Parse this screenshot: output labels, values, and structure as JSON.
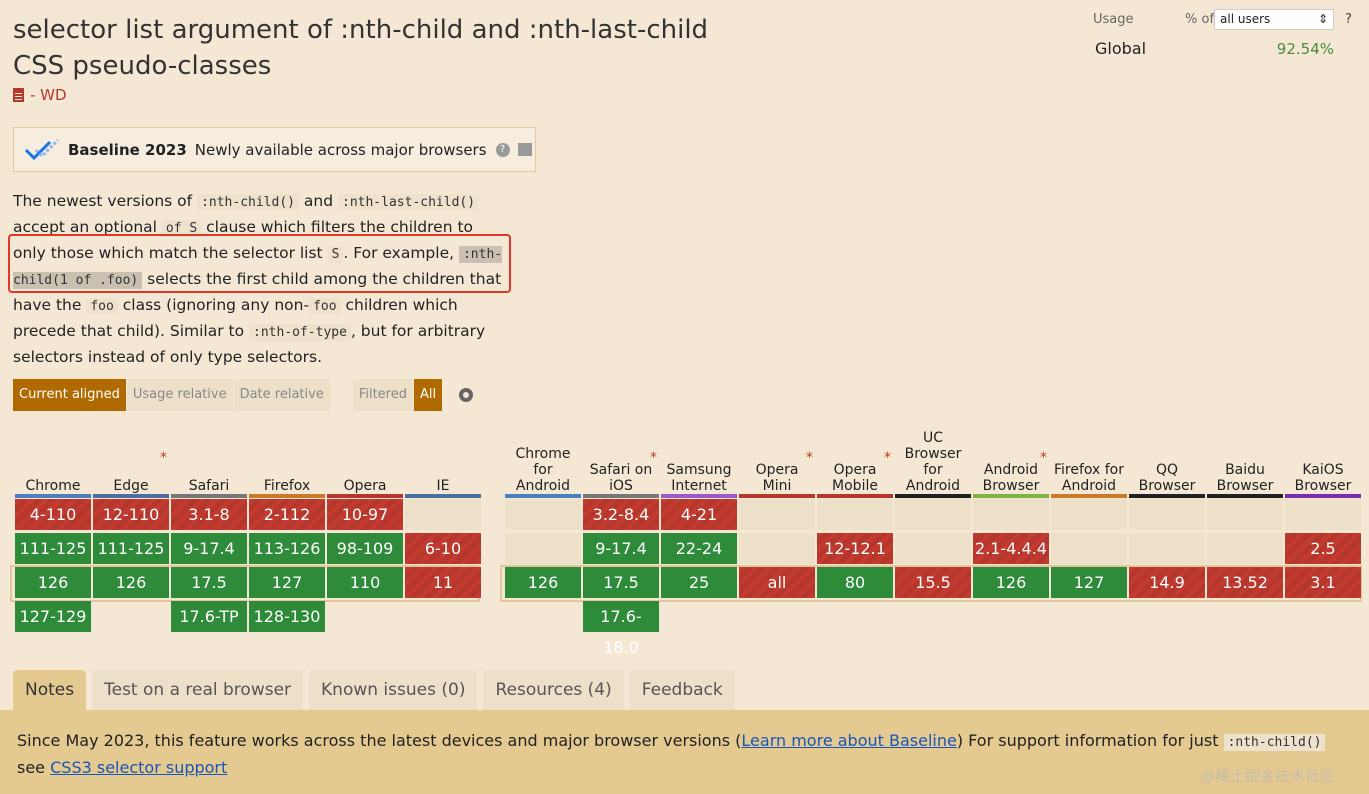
{
  "title": "selector list argument of :nth-child and :nth-last-child CSS pseudo-classes",
  "status": "- WD",
  "baseline": {
    "title": "Baseline 2023",
    "text": "Newly available across major browsers",
    "help": "?"
  },
  "description": {
    "p1": "The newest versions of ",
    "c1": ":nth-child()",
    "p2": " and ",
    "c2": ":nth-last-child()",
    "p3": " accept an optional ",
    "c3": "of S",
    "p4": " clause which filters the children to only those which match the selector list ",
    "c4": "S",
    "p5": ". For example, ",
    "c5": ":nth-child(1 of .foo)",
    "p6": " selects the first child among the children that have the ",
    "c6": "foo",
    "p7": " class (ignoring any non-",
    "c7": "foo",
    "p8": " children which precede that child). Similar to ",
    "c8": ":nth-of-type",
    "p9": ", but for arbitrary selectors instead of only type selectors."
  },
  "filters": {
    "current_aligned": "Current aligned",
    "usage_relative": "Usage relative",
    "date_relative": "Date relative",
    "filtered": "Filtered",
    "all": "All"
  },
  "usage": {
    "label": "Usage",
    "of": "% of",
    "select_value": "all users",
    "help": "?",
    "global_label": "Global",
    "global_value": "92.54%"
  },
  "browsers": [
    {
      "name": "Chrome",
      "color": "#4a7fc1",
      "cells": [
        [
          "4-110",
          "n"
        ],
        [
          "111-125",
          "y"
        ],
        [
          "126",
          "y"
        ],
        [
          "127-129",
          "y"
        ]
      ]
    },
    {
      "name": "Edge",
      "star": true,
      "color": "#4a6fa5",
      "cells": [
        [
          "12-110",
          "n"
        ],
        [
          "111-125",
          "y"
        ],
        [
          "126",
          "y"
        ],
        [
          "",
          ""
        ]
      ]
    },
    {
      "name": "Safari",
      "color": "#777777",
      "cells": [
        [
          "3.1-8",
          "n"
        ],
        [
          "9-17.4",
          "y"
        ],
        [
          "17.5",
          "y"
        ],
        [
          "17.6-TP",
          "y"
        ]
      ]
    },
    {
      "name": "Firefox",
      "color": "#c97a2b",
      "cells": [
        [
          "2-112",
          "n"
        ],
        [
          "113-126",
          "y"
        ],
        [
          "127",
          "y"
        ],
        [
          "128-130",
          "y"
        ]
      ]
    },
    {
      "name": "Opera",
      "color": "#b5362b",
      "cells": [
        [
          "10-97",
          "n"
        ],
        [
          "98-109",
          "y"
        ],
        [
          "110",
          "y"
        ],
        [
          "",
          ""
        ]
      ]
    },
    {
      "name": "IE",
      "color": "#4a6fa5",
      "cells": [
        [
          "",
          "e"
        ],
        [
          "6-10",
          "n"
        ],
        [
          "11",
          "n"
        ],
        [
          "",
          ""
        ]
      ]
    },
    {
      "name": "Chrome for Android",
      "color": "#4a7fc1",
      "cells": [
        [
          "",
          "e"
        ],
        [
          "",
          "e"
        ],
        [
          "126",
          "y"
        ],
        [
          "",
          ""
        ]
      ]
    },
    {
      "name": "Safari on iOS",
      "star": true,
      "color": "#777777",
      "cells": [
        [
          "3.2-8.4",
          "n"
        ],
        [
          "9-17.4",
          "y"
        ],
        [
          "17.5",
          "y"
        ],
        [
          "17.6-18.0",
          "y"
        ]
      ]
    },
    {
      "name": "Samsung Internet",
      "color": "#9b59c9",
      "cells": [
        [
          "4-21",
          "n"
        ],
        [
          "22-24",
          "y"
        ],
        [
          "25",
          "y"
        ],
        [
          "",
          ""
        ]
      ]
    },
    {
      "name": "Opera Mini",
      "star": true,
      "color": "#b5362b",
      "cells": [
        [
          "",
          "e"
        ],
        [
          "",
          "e"
        ],
        [
          "all",
          "n"
        ],
        [
          "",
          ""
        ]
      ]
    },
    {
      "name": "Opera Mobile",
      "star": true,
      "color": "#b5362b",
      "cells": [
        [
          "",
          "e"
        ],
        [
          "12-12.1",
          "n"
        ],
        [
          "80",
          "y"
        ],
        [
          "",
          ""
        ]
      ]
    },
    {
      "name": "UC Browser for Android",
      "color": "#222222",
      "cells": [
        [
          "",
          "e"
        ],
        [
          "",
          "e"
        ],
        [
          "15.5",
          "n"
        ],
        [
          "",
          ""
        ]
      ]
    },
    {
      "name": "Android Browser",
      "star": true,
      "color": "#7cb342",
      "cells": [
        [
          "",
          "e"
        ],
        [
          "2.1-4.4.4",
          "n"
        ],
        [
          "126",
          "y"
        ],
        [
          "",
          ""
        ]
      ]
    },
    {
      "name": "Firefox for Android",
      "color": "#c97a2b",
      "cells": [
        [
          "",
          "e"
        ],
        [
          "",
          "e"
        ],
        [
          "127",
          "y"
        ],
        [
          "",
          ""
        ]
      ]
    },
    {
      "name": "QQ Browser",
      "color": "#222222",
      "cells": [
        [
          "",
          "e"
        ],
        [
          "",
          "e"
        ],
        [
          "14.9",
          "n"
        ],
        [
          "",
          ""
        ]
      ]
    },
    {
      "name": "Baidu Browser",
      "color": "#222222",
      "cells": [
        [
          "",
          "e"
        ],
        [
          "",
          "e"
        ],
        [
          "13.52",
          "n"
        ],
        [
          "",
          ""
        ]
      ]
    },
    {
      "name": "KaiOS Browser",
      "color": "#7b2cb0",
      "cells": [
        [
          "",
          "e"
        ],
        [
          "2.5",
          "n"
        ],
        [
          "3.1",
          "n"
        ],
        [
          "",
          ""
        ]
      ]
    }
  ],
  "tabs": [
    "Notes",
    "Test on a real browser",
    "Known issues (0)",
    "Resources (4)",
    "Feedback"
  ],
  "notes": {
    "t1": "Since May 2023, this feature works across the latest devices and major browser versions (",
    "link1": "Learn more about Baseline",
    "t2": ") For support information for just ",
    "code": ":nth-child()",
    "t3": " see ",
    "link2": "CSS3 selector support"
  },
  "watermark": "@稀土掘金技术社区"
}
